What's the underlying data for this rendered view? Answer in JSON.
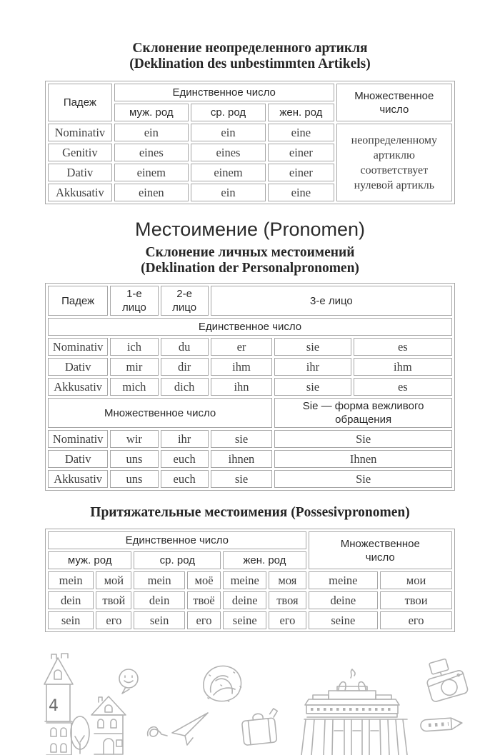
{
  "page": {
    "section1": {
      "title_ru": "Склонение неопределенного артикля",
      "title_de": "(Deklination des unbestimmten Artikels)"
    },
    "pronomen_heading": "Местоимение (Pronomen)",
    "section2": {
      "title_ru": "Склонение личных местоимений",
      "title_de": "(Deklination der Personalpronomen)"
    },
    "section3": {
      "title": "Притяжательные местоимения (Possesivpronomen)"
    }
  },
  "colors": {
    "table_border": "#a6a6a6",
    "title_text": "#262626",
    "header_text": "#2a2a2a",
    "data_text": "#3f3f3f",
    "doodle_stroke": "#b2b2b2"
  },
  "tables": {
    "article": {
      "widths": [
        16.2,
        18.8,
        19.0,
        16.7,
        29.3
      ],
      "rows": [
        [
          {
            "t": "Падеж",
            "rs": 2,
            "k": "h"
          },
          {
            "t": "Единственное число",
            "cs": 3,
            "k": "h"
          },
          {
            "t": "Множественное\nчисло",
            "rs": 2,
            "k": "h"
          }
        ],
        [
          {
            "t": "муж. род",
            "k": "h"
          },
          {
            "t": "ср. род",
            "k": "h"
          },
          {
            "t": "жен. род",
            "k": "h"
          }
        ],
        [
          {
            "t": "Nominativ",
            "k": "case"
          },
          "ein",
          "ein",
          "eine",
          {
            "t": "неопределенному\nартиклю\nсоответствует\nнулевой артикль",
            "rs": 4,
            "k": "note"
          }
        ],
        [
          {
            "t": "Genitiv",
            "k": "case"
          },
          "eines",
          "eines",
          "einer"
        ],
        [
          {
            "t": "Dativ",
            "k": "case"
          },
          "einem",
          "einem",
          "einer"
        ],
        [
          {
            "t": "Akkusativ",
            "k": "case"
          },
          "einen",
          "ein",
          "eine"
        ]
      ]
    },
    "personal": {
      "widths": [
        15.3,
        12.2,
        12.2,
        15.7,
        19.5,
        25.1
      ],
      "rows": [
        [
          {
            "t": "Падеж",
            "k": "h"
          },
          {
            "t": "1-е лицо",
            "k": "h"
          },
          {
            "t": "2-е лицо",
            "k": "h"
          },
          {
            "t": "3-е лицо",
            "cs": 3,
            "k": "h"
          }
        ],
        [
          {
            "t": "Единственное число",
            "cs": 6,
            "k": "h"
          }
        ],
        [
          {
            "t": "Nominativ",
            "k": "case"
          },
          "ich",
          "du",
          "er",
          "sie",
          "es"
        ],
        [
          {
            "t": "Dativ",
            "k": "case"
          },
          "mir",
          "dir",
          "ihm",
          "ihr",
          "ihm"
        ],
        [
          {
            "t": "Akkusativ",
            "k": "case"
          },
          "mich",
          "dich",
          "ihn",
          "sie",
          "es"
        ],
        [
          {
            "t": "Множественное число",
            "cs": 4,
            "k": "h"
          },
          {
            "t": "Sie — форма вежливого\nобращения",
            "cs": 2,
            "k": "h"
          }
        ],
        [
          {
            "t": "Nominativ",
            "k": "case"
          },
          "wir",
          "ihr",
          "sie",
          {
            "t": "Sie",
            "cs": 2,
            "k": "d"
          }
        ],
        [
          {
            "t": "Dativ",
            "k": "case"
          },
          "uns",
          "euch",
          "ihnen",
          {
            "t": "Ihnen",
            "cs": 2,
            "k": "d"
          }
        ],
        [
          {
            "t": "Akkusativ",
            "k": "case"
          },
          "uns",
          "euch",
          "sie",
          {
            "t": "Sie",
            "cs": 2,
            "k": "d"
          }
        ]
      ]
    },
    "possessive": {
      "widths": [
        11.8,
        9.2,
        13.1,
        8.7,
        11.2,
        9.6,
        17.9,
        18.5
      ],
      "rows": [
        [
          {
            "t": "Единственное число",
            "cs": 6,
            "k": "h"
          },
          {
            "t": "Множественное\nчисло",
            "cs": 2,
            "rs": 2,
            "k": "h"
          }
        ],
        [
          {
            "t": "муж. род",
            "cs": 2,
            "k": "h"
          },
          {
            "t": "ср. род",
            "cs": 2,
            "k": "h"
          },
          {
            "t": "жен. род",
            "cs": 2,
            "k": "h"
          }
        ],
        [
          "mein",
          "мой",
          "mein",
          "моё",
          "meine",
          "моя",
          "meine",
          "мои"
        ],
        [
          "dein",
          "твой",
          "dein",
          "твоё",
          "deine",
          "твоя",
          "deine",
          "твои"
        ],
        [
          "sein",
          "его",
          "sein",
          "его",
          "seine",
          "его",
          "seine",
          "его"
        ]
      ]
    }
  },
  "decorations": {
    "tower_glyph": "4",
    "items": [
      "clock-tower-doodle",
      "tree-doodle",
      "small-house-doodle",
      "smiley-speech-bubble-doodle",
      "paper-plane-doodle",
      "pretzel-doodle",
      "suitcase-doodle",
      "brandenburg-gate-doodle",
      "camera-doodle",
      "pencil-doodle"
    ]
  }
}
